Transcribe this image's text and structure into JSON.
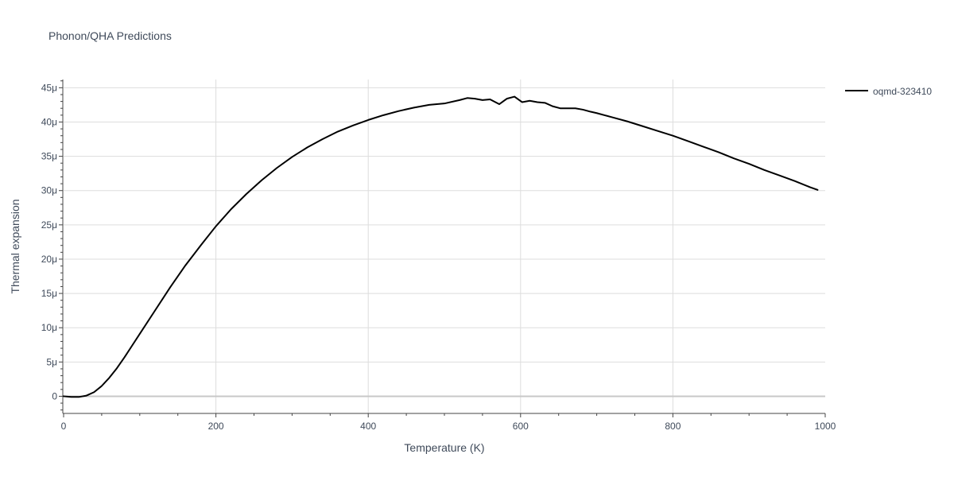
{
  "chart_data": {
    "type": "line",
    "title": "Phonon/QHA Predictions",
    "xlabel": "Temperature (K)",
    "ylabel": "Thermal expansion",
    "xlim": [
      0,
      1000
    ],
    "ylim": [
      -2.5e-06,
      4.62e-05
    ],
    "x_ticks": [
      0,
      200,
      400,
      600,
      800,
      1000
    ],
    "x_tick_labels": [
      "0",
      "200",
      "400",
      "600",
      "800",
      "1000"
    ],
    "y_ticks": [
      0,
      5e-06,
      1e-05,
      1.5e-05,
      2e-05,
      2.5e-05,
      3e-05,
      3.5e-05,
      4e-05,
      4.5e-05
    ],
    "y_tick_labels": [
      "0",
      "5μ",
      "10μ",
      "15μ",
      "20μ",
      "25μ",
      "30μ",
      "35μ",
      "40μ",
      "45μ"
    ],
    "grid": true,
    "legend_position": "top-right",
    "series": [
      {
        "name": "oqmd-323410",
        "color": "#000000",
        "x": [
          0,
          10,
          20,
          30,
          40,
          50,
          60,
          70,
          80,
          90,
          100,
          120,
          140,
          160,
          180,
          200,
          220,
          240,
          260,
          280,
          300,
          320,
          340,
          360,
          380,
          400,
          420,
          440,
          460,
          480,
          500,
          520,
          530,
          540,
          550,
          560,
          572,
          582,
          592,
          602,
          612,
          622,
          632,
          642,
          652,
          662,
          672,
          682,
          692,
          700,
          720,
          740,
          760,
          780,
          800,
          820,
          840,
          860,
          880,
          900,
          920,
          940,
          960,
          980,
          990
        ],
        "y": [
          0.0,
          -1e-07,
          -1e-07,
          1e-07,
          6e-07,
          1.5e-06,
          2.7e-06,
          4.1e-06,
          5.7e-06,
          7.4e-06,
          9.1e-06,
          1.25e-05,
          1.59e-05,
          1.91e-05,
          2.2e-05,
          2.48e-05,
          2.73e-05,
          2.95e-05,
          3.15e-05,
          3.33e-05,
          3.49e-05,
          3.63e-05,
          3.75e-05,
          3.86e-05,
          3.95e-05,
          4.03e-05,
          4.1e-05,
          4.16e-05,
          4.21e-05,
          4.25e-05,
          4.27e-05,
          4.32e-05,
          4.35e-05,
          4.34e-05,
          4.32e-05,
          4.33e-05,
          4.26e-05,
          4.34e-05,
          4.37e-05,
          4.29e-05,
          4.31e-05,
          4.29e-05,
          4.28e-05,
          4.23e-05,
          4.2e-05,
          4.2e-05,
          4.2e-05,
          4.18e-05,
          4.15e-05,
          4.13e-05,
          4.07e-05,
          4.01e-05,
          3.94e-05,
          3.87e-05,
          3.8e-05,
          3.72e-05,
          3.64e-05,
          3.56e-05,
          3.47e-05,
          3.39e-05,
          3.3e-05,
          3.22e-05,
          3.14e-05,
          3.05e-05,
          3.01e-05
        ]
      }
    ]
  }
}
